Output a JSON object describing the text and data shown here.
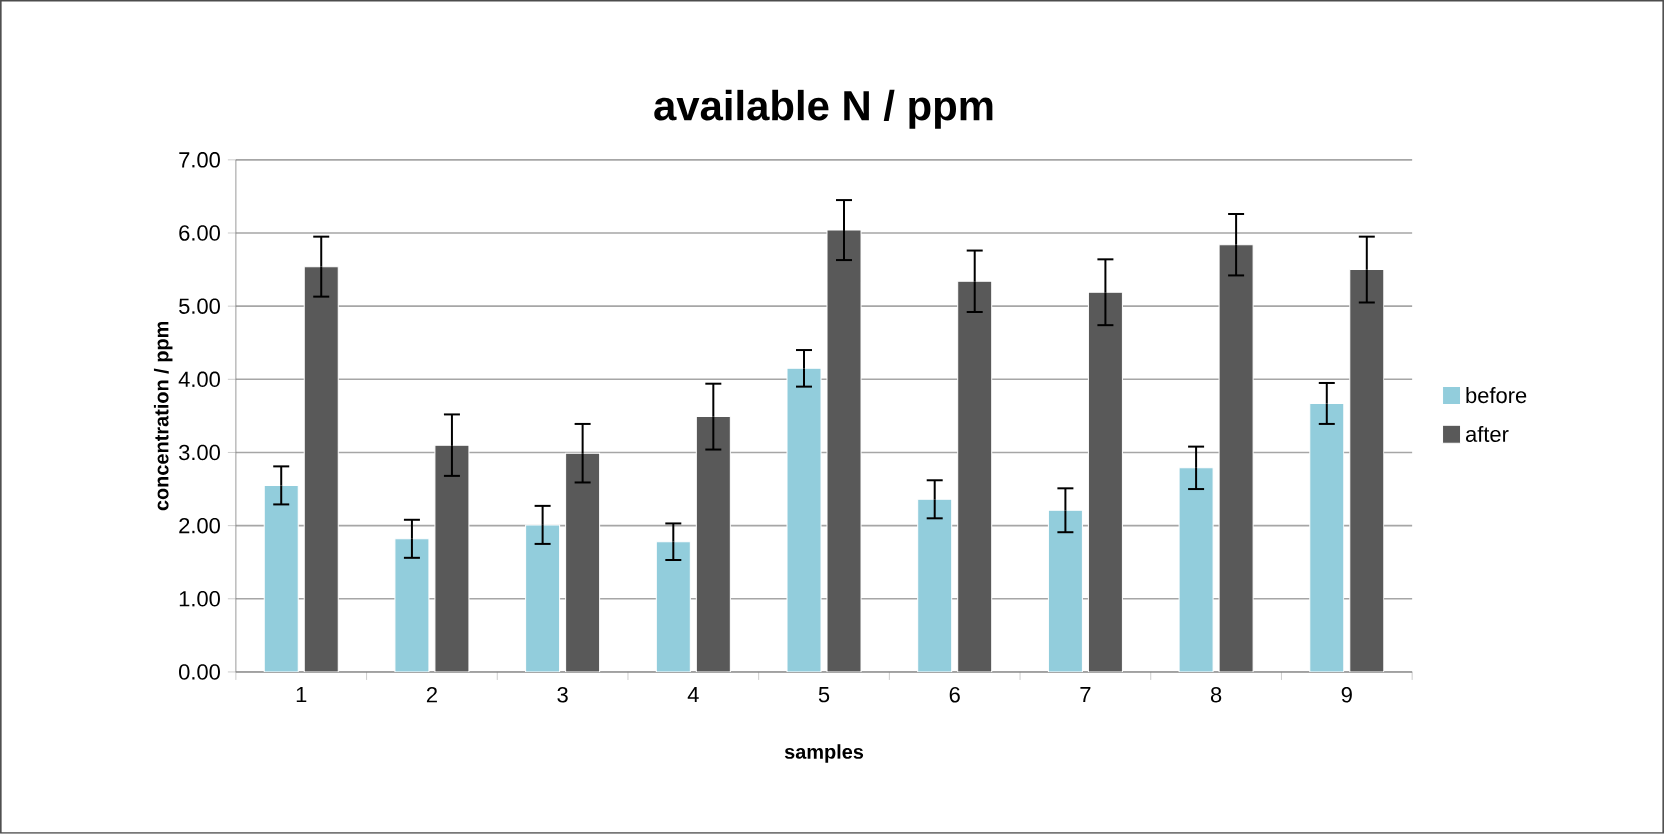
{
  "chart_data": {
    "type": "bar",
    "title": "available N / ppm",
    "xlabel": "samples",
    "ylabel": "concentration / ppm",
    "categories": [
      "1",
      "2",
      "3",
      "4",
      "5",
      "6",
      "7",
      "8",
      "9"
    ],
    "series": [
      {
        "name": "before",
        "color": "#92cddc",
        "values": [
          2.55,
          1.82,
          2.01,
          1.78,
          4.15,
          2.36,
          2.21,
          2.79,
          3.67
        ],
        "errors": [
          0.26,
          0.26,
          0.26,
          0.25,
          0.25,
          0.26,
          0.3,
          0.29,
          0.28
        ]
      },
      {
        "name": "after",
        "color": "#595959",
        "values": [
          5.54,
          3.1,
          2.99,
          3.49,
          6.04,
          5.34,
          5.19,
          5.84,
          5.5
        ],
        "errors": [
          0.41,
          0.42,
          0.4,
          0.45,
          0.41,
          0.42,
          0.45,
          0.42,
          0.45
        ]
      }
    ],
    "ylim": [
      0,
      7
    ],
    "yticks": [
      {
        "value": 0,
        "label": "0.00"
      },
      {
        "value": 1,
        "label": "1.00"
      },
      {
        "value": 2,
        "label": "2.00"
      },
      {
        "value": 3,
        "label": "3.00"
      },
      {
        "value": 4,
        "label": "4.00"
      },
      {
        "value": 5,
        "label": "5.00"
      },
      {
        "value": 6,
        "label": "6.00"
      },
      {
        "value": 7,
        "label": "7.00"
      }
    ],
    "grid": "y",
    "legend": "right"
  }
}
